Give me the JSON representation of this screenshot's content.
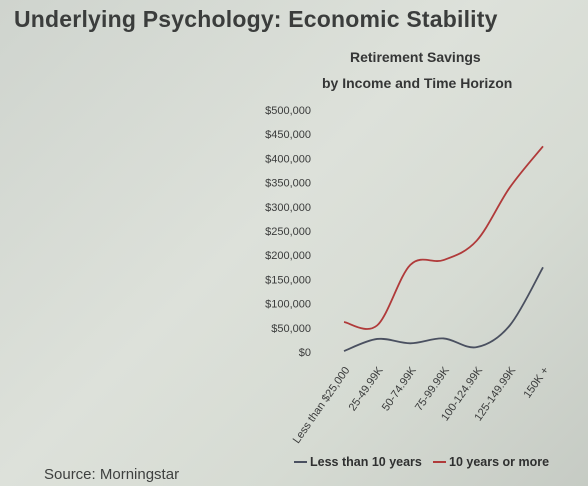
{
  "slide": {
    "title": "Underlying Psychology: Economic Stability",
    "source": "Source: Morningstar"
  },
  "chart_data": {
    "type": "line",
    "title_line1": "Retirement Savings",
    "title_line2": "by Income and Time Horizon",
    "categories": [
      "Less than $25,000",
      "25-49.99K",
      "50-74.99K",
      "75-99.99K",
      "100-124.99K",
      "125-149.99K",
      "150K +"
    ],
    "ylim": [
      0,
      500000
    ],
    "yticks": [
      0,
      50000,
      100000,
      150000,
      200000,
      250000,
      300000,
      350000,
      400000,
      450000,
      500000
    ],
    "ytick_labels": [
      "$0",
      "$50,000",
      "$100,000",
      "$150,000",
      "$200,000",
      "$250,000",
      "$300,000",
      "$350,000",
      "$400,000",
      "$450,000",
      "$500,000"
    ],
    "series": [
      {
        "name": "Less than 10 years",
        "color": "#4a5060",
        "values": [
          2000,
          27000,
          18000,
          28000,
          10000,
          55000,
          175000
        ]
      },
      {
        "name": "10 years or more",
        "color": "#b03a3a",
        "values": [
          62000,
          55000,
          180000,
          190000,
          230000,
          340000,
          425000
        ]
      }
    ],
    "legend_position": "bottom",
    "grid": false
  }
}
